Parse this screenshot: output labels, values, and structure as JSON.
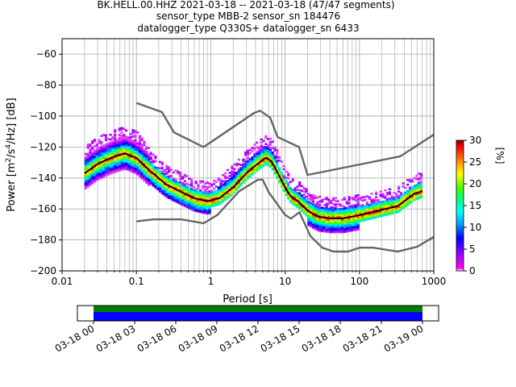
{
  "header": {
    "line1": "BK.HELL.00.HHZ   2021-03-18 -- 2021-03-18  (47/47 segments)",
    "line2": "sensor_type MBB-2 sensor_sn 184476",
    "line3": "datalogger_type Q330S+ datalogger_sn 6433"
  },
  "colorbar": {
    "label": "[%]",
    "ticks": [
      "0",
      "5",
      "10",
      "15",
      "20",
      "25",
      "30"
    ],
    "range": [
      0,
      30
    ]
  },
  "chart_data": [
    {
      "type": "heatmap",
      "title": "",
      "xlabel": "Period [s]",
      "ylabel_parts": [
        "Power [m",
        "2",
        "/s",
        "4",
        "/Hz] [dB]"
      ],
      "x_scale": "log",
      "xlim": [
        0.01,
        1000
      ],
      "ylim": [
        -200,
        -50
      ],
      "x_ticks": [
        0.01,
        0.1,
        1,
        10,
        100,
        1000
      ],
      "x_tick_labels": [
        "0.01",
        "0.1",
        "1",
        "10",
        "100",
        "1000"
      ],
      "y_ticks": [
        -200,
        -180,
        -160,
        -140,
        -120,
        -100,
        -80,
        -60
      ],
      "y_tick_labels": [
        "−200",
        "−180",
        "−160",
        "−140",
        "−120",
        "−100",
        "−80",
        "−60"
      ],
      "grid": true,
      "noise_model_high": {
        "x": [
          0.1,
          0.22,
          0.32,
          0.8,
          3.8,
          4.6,
          6.3,
          7.9,
          15.4,
          20,
          354,
          1000
        ],
        "y": [
          -91.5,
          -97.4,
          -110.5,
          -120,
          -98,
          -96.5,
          -101,
          -113.5,
          -120,
          -138,
          -126,
          -112
        ]
      },
      "noise_model_low": {
        "x": [
          0.1,
          0.17,
          0.4,
          0.8,
          1.24,
          2.4,
          4.3,
          5,
          6,
          10,
          12,
          15.6,
          21.9,
          31.6,
          45,
          70,
          101,
          154,
          328,
          600,
          1000
        ],
        "y": [
          -168,
          -166.7,
          -166.7,
          -169.2,
          -163.7,
          -148.6,
          -141.1,
          -141.1,
          -149,
          -163.8,
          -166.2,
          -162.1,
          -177.5,
          -185,
          -187.5,
          -187.5,
          -185,
          -185,
          -187.5,
          -184.4,
          -178
        ]
      },
      "mode_curve": {
        "x": [
          0.02,
          0.03,
          0.045,
          0.07,
          0.1,
          0.15,
          0.25,
          0.4,
          0.6,
          0.9,
          1.3,
          2,
          3,
          4.2,
          5.5,
          6.5,
          8,
          10,
          12,
          15,
          20,
          28,
          40,
          60,
          100,
          150,
          220,
          330,
          550,
          650,
          700
        ],
        "y": [
          -137,
          -131,
          -127,
          -124,
          -127,
          -135,
          -144,
          -149,
          -153,
          -155,
          -153,
          -146,
          -137,
          -131,
          -127,
          -129,
          -137,
          -146,
          -152,
          -155,
          -161,
          -165,
          -166,
          -166,
          -164,
          -162,
          -160,
          -158,
          -150,
          -149,
          -148
        ]
      }
    },
    {
      "type": "timeline",
      "x_tick_labels": [
        "03-18 00",
        "03-18 03",
        "03-18 06",
        "03-18 09",
        "03-18 12",
        "03-18 15",
        "03-18 18",
        "03-18 21",
        "03-19 00"
      ],
      "coverage": [
        [
          "03-18 00",
          "03-19 00"
        ]
      ],
      "colors": {
        "upper": "#008000",
        "lower": "#0000ff"
      }
    }
  ]
}
